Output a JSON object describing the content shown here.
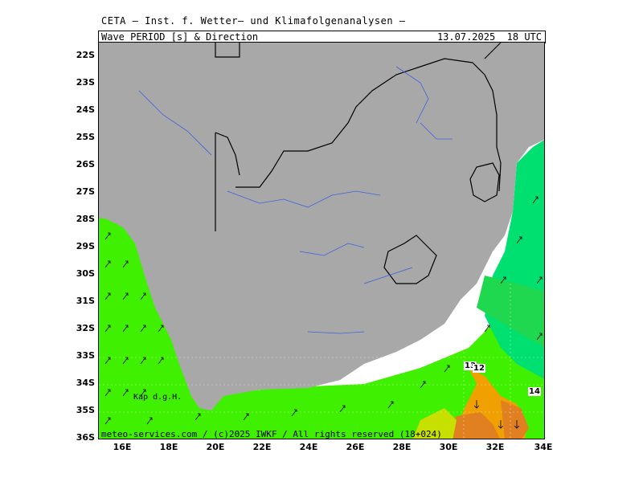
{
  "header": {
    "institute": "CETA — Inst. f. Wetter– und Klimafolgenanalysen —",
    "title": "Wave_PERIOD_[s]_&_Direction",
    "timestamp": "13.07.2025  18 UTC"
  },
  "axes": {
    "lat_labels": [
      "22S",
      "23S",
      "24S",
      "25S",
      "26S",
      "27S",
      "28S",
      "29S",
      "30S",
      "31S",
      "32S",
      "33S",
      "34S",
      "35S",
      "36S"
    ],
    "lon_labels": [
      "16E",
      "18E",
      "20E",
      "22E",
      "24E",
      "26E",
      "28E",
      "30E",
      "32E",
      "34E"
    ]
  },
  "annotations": {
    "place_label": "Kap d.g.H.",
    "copyright": "meteo-services.com / (c)2025 IWKF / All rights reserved (18+024)",
    "contour_values": [
      "13",
      "12",
      "14"
    ]
  },
  "colors": {
    "land": "#a8a8a8",
    "sea_short_period": "#3ff000",
    "sea_mid_period": "#00e070",
    "sea_long_period": "#f0a000",
    "sea_longest_period": "#e08020",
    "border": "#000000",
    "river": "#4060e0"
  }
}
